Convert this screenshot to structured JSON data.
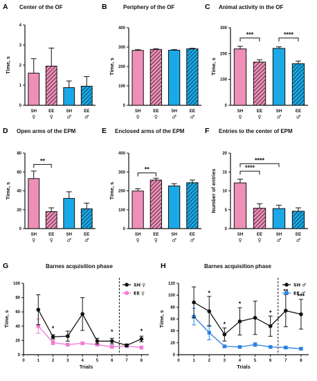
{
  "colors": {
    "pink": "#ee8fb8",
    "pink_hatch": "#c9366f",
    "blue": "#1aa9e6",
    "blue_hatch": "#1b6f9f",
    "barnes_female_ee": "#ef7ad5",
    "barnes_male_ee": "#2980e0",
    "axis": "#111111"
  },
  "chart_data": [
    {
      "id": "A",
      "letter": "A",
      "type": "bar",
      "title": "Center of the OF",
      "ylabel": "Time, s",
      "ylim": [
        0,
        4
      ],
      "yticks": [
        0,
        1,
        2,
        3,
        4
      ],
      "categories": [
        [
          "SH",
          "♀"
        ],
        [
          "EE",
          "♀"
        ],
        [
          "SH",
          "♂"
        ],
        [
          "EE",
          "♂"
        ]
      ],
      "values": [
        1.6,
        1.95,
        0.88,
        0.95
      ],
      "errors": [
        0.72,
        0.9,
        0.33,
        0.48
      ],
      "styles": [
        "pink",
        "pink_hatch",
        "blue",
        "blue_hatch"
      ],
      "significance": []
    },
    {
      "id": "B",
      "letter": "B",
      "type": "bar",
      "title": "Periphery of the OF",
      "ylabel": "Time, s",
      "ylim": [
        0,
        400
      ],
      "yticks": [
        0,
        100,
        200,
        300,
        400
      ],
      "categories": [
        [
          "SH",
          "♀"
        ],
        [
          "EE",
          "♀"
        ],
        [
          "SH",
          "♂"
        ],
        [
          "EE",
          "♂"
        ]
      ],
      "values": [
        283,
        288,
        284,
        291
      ],
      "errors": [
        4,
        4,
        3,
        3
      ],
      "styles": [
        "pink",
        "pink_hatch",
        "blue",
        "blue_hatch"
      ],
      "significance": []
    },
    {
      "id": "C",
      "letter": "C",
      "type": "bar",
      "title": "Animal activity in the OF",
      "ylabel": "Time, s",
      "ylim": [
        0,
        300
      ],
      "yticks": [
        0,
        100,
        200,
        300
      ],
      "categories": [
        [
          "SH",
          "♀"
        ],
        [
          "EE",
          "♀"
        ],
        [
          "SH",
          "♂"
        ],
        [
          "EE",
          "♂"
        ]
      ],
      "values": [
        218,
        167,
        220,
        161
      ],
      "errors": [
        10,
        9,
        6,
        10
      ],
      "styles": [
        "pink",
        "pink_hatch",
        "blue",
        "blue_hatch"
      ],
      "significance": [
        {
          "from": 0,
          "to": 1,
          "label": "***",
          "y": 260
        },
        {
          "from": 2,
          "to": 3,
          "label": "****",
          "y": 260
        }
      ]
    },
    {
      "id": "D",
      "letter": "D",
      "type": "bar",
      "title": "Open arms of the EPM",
      "ylabel": "Time, s",
      "ylim": [
        0,
        80
      ],
      "yticks": [
        0,
        20,
        40,
        60,
        80
      ],
      "categories": [
        [
          "SH",
          "♀"
        ],
        [
          "EE",
          "♀"
        ],
        [
          "SH",
          "♂"
        ],
        [
          "EE",
          "♂"
        ]
      ],
      "values": [
        53,
        18,
        32,
        21
      ],
      "errors": [
        8,
        4,
        7,
        6
      ],
      "styles": [
        "pink",
        "pink_hatch",
        "blue",
        "blue_hatch"
      ],
      "significance": [
        {
          "from": 0,
          "to": 1,
          "label": "**",
          "y": 68
        }
      ]
    },
    {
      "id": "E",
      "letter": "E",
      "type": "bar",
      "title": "Enclosed arms of the EPM",
      "ylabel": "Time, s",
      "ylim": [
        0,
        400
      ],
      "yticks": [
        0,
        100,
        200,
        300,
        400
      ],
      "categories": [
        [
          "SH",
          "♀"
        ],
        [
          "EE",
          "♀"
        ],
        [
          "SH",
          "♂"
        ],
        [
          "EE",
          "♂"
        ]
      ],
      "values": [
        199,
        257,
        226,
        243
      ],
      "errors": [
        12,
        10,
        12,
        14
      ],
      "styles": [
        "pink",
        "pink_hatch",
        "blue",
        "blue_hatch"
      ],
      "significance": [
        {
          "from": 0,
          "to": 1,
          "label": "**",
          "y": 295
        }
      ]
    },
    {
      "id": "F",
      "letter": "F",
      "type": "bar",
      "title": "Entries to the center of EPM",
      "ylabel": "Number of entries",
      "ylim": [
        0,
        20
      ],
      "yticks": [
        0,
        5,
        10,
        15,
        20
      ],
      "categories": [
        [
          "SH",
          "♀"
        ],
        [
          "EE",
          "♀"
        ],
        [
          "SH",
          "♂"
        ],
        [
          "EE",
          "♂"
        ]
      ],
      "values": [
        12.1,
        5.4,
        5.3,
        4.6
      ],
      "errors": [
        1.0,
        1.2,
        0.9,
        0.9
      ],
      "styles": [
        "pink",
        "pink_hatch",
        "blue",
        "blue_hatch"
      ],
      "significance": [
        {
          "from": 0,
          "to": 1,
          "label": "****",
          "y": 15.2
        },
        {
          "from": 0,
          "to": 2,
          "label": "****",
          "y": 17.2
        }
      ]
    },
    {
      "id": "G",
      "letter": "G",
      "type": "line",
      "title": "Barnes acquisition phase",
      "ylabel": "Time, s",
      "xlabel": "Trials",
      "ylim": [
        0,
        100
      ],
      "yticks": [
        0,
        20,
        40,
        60,
        80,
        100
      ],
      "xlim": [
        0,
        8.5
      ],
      "xticks": [
        0,
        1,
        2,
        3,
        4,
        5,
        6,
        7,
        8
      ],
      "divider_x": 6.5,
      "x": [
        1,
        2,
        3,
        4,
        5,
        6,
        7,
        8
      ],
      "series": [
        {
          "name": "SH ♀",
          "marker": "circle",
          "color": "axis",
          "values": [
            63,
            25,
            26,
            57,
            19,
            19,
            13,
            22
          ],
          "errors": [
            21,
            3,
            7,
            23,
            4,
            4,
            2,
            4
          ]
        },
        {
          "name": "EE ♀",
          "marker": "square",
          "color": "barnes_female_ee",
          "values": [
            40,
            17,
            14,
            16,
            14,
            11,
            12,
            10
          ],
          "errors": [
            10,
            3,
            2,
            2,
            2,
            2,
            1,
            2
          ]
        }
      ],
      "significance": [
        {
          "x": 2,
          "label": "*",
          "y": 34
        },
        {
          "x": 6,
          "label": "*",
          "y": 29
        },
        {
          "x": 8,
          "label": "*",
          "y": 30
        }
      ]
    },
    {
      "id": "H",
      "letter": "H",
      "type": "line",
      "title": "Barnes acquisition phase",
      "ylabel": "Time, s",
      "xlabel": "Trials",
      "ylim": [
        0,
        120
      ],
      "yticks": [
        0,
        20,
        40,
        60,
        80,
        100,
        120
      ],
      "xlim": [
        0,
        8.5
      ],
      "xticks": [
        0,
        1,
        2,
        3,
        4,
        5,
        6,
        7,
        8
      ],
      "divider_x": 6.5,
      "x": [
        1,
        2,
        3,
        4,
        5,
        6,
        7,
        8
      ],
      "series": [
        {
          "name": "SH ♂",
          "marker": "circle",
          "color": "axis",
          "values": [
            88,
            73,
            34,
            56,
            62,
            48,
            74,
            68
          ],
          "errors": [
            26,
            25,
            11,
            23,
            28,
            17,
            27,
            25
          ]
        },
        {
          "name": "EE ♂",
          "marker": "square",
          "color": "barnes_male_ee",
          "values": [
            64,
            37,
            14,
            13,
            17,
            13,
            12,
            10
          ],
          "errors": [
            14,
            12,
            2,
            2,
            3,
            2,
            2,
            2
          ]
        }
      ],
      "significance": [
        {
          "x": 2,
          "label": "*",
          "y": 100
        },
        {
          "x": 3,
          "label": "*",
          "y": 48
        },
        {
          "x": 4,
          "label": "*",
          "y": 82
        },
        {
          "x": 6,
          "label": "*",
          "y": 67
        },
        {
          "x": 7,
          "label": "**",
          "y": 103
        },
        {
          "x": 8,
          "label": "***",
          "y": 95
        }
      ]
    }
  ]
}
